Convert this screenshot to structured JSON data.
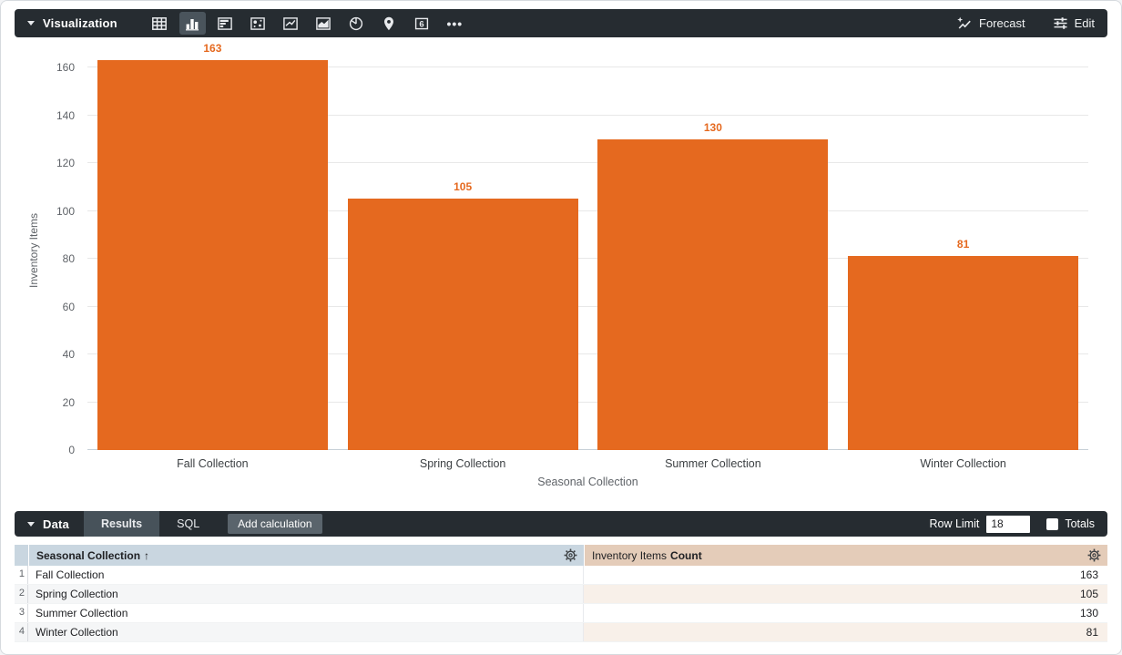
{
  "colors": {
    "accent_orange": "#E5691F",
    "toolbar_bg": "#262C31",
    "dimension_header_bg": "#C9D6E0",
    "measure_header_bg": "#E4CCB9",
    "dimension_row_alt_bg": "#F5F6F7",
    "measure_row_alt_bg": "#F8F0E9"
  },
  "viz_toolbar": {
    "section_label": "Visualization",
    "icons": [
      {
        "name": "table-icon",
        "selected": false
      },
      {
        "name": "column-chart-icon",
        "selected": true
      },
      {
        "name": "bar-chart-icon",
        "selected": false
      },
      {
        "name": "scatter-chart-icon",
        "selected": false
      },
      {
        "name": "line-chart-icon",
        "selected": false
      },
      {
        "name": "area-chart-icon",
        "selected": false
      },
      {
        "name": "pie-chart-icon",
        "selected": false
      },
      {
        "name": "map-pin-icon",
        "selected": false
      },
      {
        "name": "single-value-icon",
        "selected": false
      },
      {
        "name": "more-icon",
        "selected": false
      }
    ],
    "single_value_glyph": "6",
    "more_glyph": "•••",
    "forecast_label": "Forecast",
    "edit_label": "Edit"
  },
  "chart_data": {
    "type": "bar",
    "categories": [
      "Fall Collection",
      "Spring Collection",
      "Summer Collection",
      "Winter Collection"
    ],
    "values": [
      163,
      105,
      130,
      81
    ],
    "title": "",
    "xlabel": "Seasonal Collection",
    "ylabel": "Inventory Items",
    "ylim": [
      0,
      160
    ],
    "ytick_step": 20,
    "grid": true,
    "value_labels": [
      163,
      105,
      130,
      81
    ],
    "bar_color": "#E5691F"
  },
  "data_toolbar": {
    "section_label": "Data",
    "tabs": [
      {
        "label": "Results",
        "active": true
      },
      {
        "label": "SQL",
        "active": false
      }
    ],
    "add_calculation_label": "Add calculation",
    "row_limit_label": "Row Limit",
    "row_limit_value": "18",
    "totals_label": "Totals",
    "totals_checked": false
  },
  "table": {
    "columns": [
      {
        "label": "Seasonal Collection",
        "sort_indicator": "↑",
        "type": "dimension"
      },
      {
        "label": "Inventory Items",
        "agg_label": "Count",
        "type": "measure"
      }
    ],
    "rows": [
      {
        "index": "1",
        "dimension": "Fall Collection",
        "measure": "163"
      },
      {
        "index": "2",
        "dimension": "Spring Collection",
        "measure": "105"
      },
      {
        "index": "3",
        "dimension": "Summer Collection",
        "measure": "130"
      },
      {
        "index": "4",
        "dimension": "Winter Collection",
        "measure": "81"
      }
    ]
  }
}
